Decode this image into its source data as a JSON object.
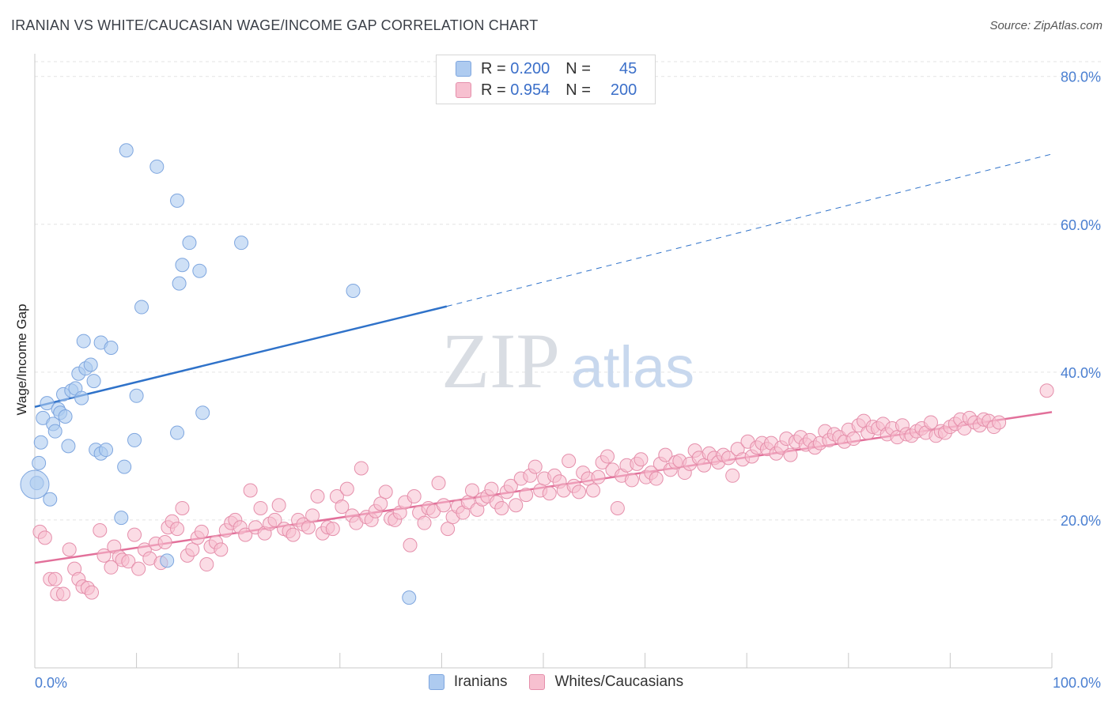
{
  "title": "IRANIAN VS WHITE/CAUCASIAN WAGE/INCOME GAP CORRELATION CHART",
  "source": "Source: ZipAtlas.com",
  "watermark": {
    "zip": "ZIP",
    "atlas": "atlas"
  },
  "legend": {
    "rows": [
      {
        "r_label": "R =",
        "r_value": "0.200",
        "n_label": "N =",
        "n_value": "45",
        "color": "#aecbf0",
        "border": "#7ea6df"
      },
      {
        "r_label": "R =",
        "r_value": "0.954",
        "n_label": "N =",
        "n_value": "200",
        "color": "#f7c0d0",
        "border": "#e58fab"
      }
    ]
  },
  "bottom_legend": [
    {
      "label": "Iranians",
      "color": "#aecbf0",
      "border": "#7ea6df"
    },
    {
      "label": "Whites/Caucasians",
      "color": "#f7c0d0",
      "border": "#e58fab"
    }
  ],
  "chart_data": {
    "type": "scatter",
    "title": "IRANIAN VS WHITE/CAUCASIAN WAGE/INCOME GAP CORRELATION CHART",
    "xlabel": "",
    "ylabel": "Wage/Income Gap",
    "xlim": [
      0,
      100
    ],
    "ylim": [
      0,
      82
    ],
    "x_tick_labels": [
      "0.0%",
      "100.0%"
    ],
    "y_ticks": [
      20,
      40,
      60,
      80
    ],
    "y_tick_labels": [
      "20.0%",
      "40.0%",
      "60.0%",
      "80.0%"
    ],
    "grid": "horizontal dashed",
    "series": [
      {
        "name": "Iranians",
        "color": "#aecbf0",
        "stroke": "#7ea6df",
        "trend_color": "#2f72c9",
        "trend": {
          "x0": 0,
          "y0": 35.3,
          "x1": 40.5,
          "y1": 48.9,
          "x_dash_end": 100,
          "y_dash_end": 69.5
        },
        "points": [
          [
            0.2,
            25.0
          ],
          [
            0.4,
            27.7
          ],
          [
            0.6,
            30.5
          ],
          [
            0.8,
            33.8
          ],
          [
            1.2,
            35.8
          ],
          [
            1.5,
            22.8
          ],
          [
            1.8,
            33.0
          ],
          [
            2.0,
            32.0
          ],
          [
            2.3,
            35.0
          ],
          [
            2.5,
            34.5
          ],
          [
            2.8,
            37.0
          ],
          [
            3.0,
            34.0
          ],
          [
            3.3,
            30.0
          ],
          [
            3.6,
            37.5
          ],
          [
            4.0,
            37.8
          ],
          [
            4.3,
            39.8
          ],
          [
            4.6,
            36.5
          ],
          [
            4.8,
            44.2
          ],
          [
            5.0,
            40.5
          ],
          [
            5.5,
            41.0
          ],
          [
            5.8,
            38.8
          ],
          [
            6.0,
            29.5
          ],
          [
            6.5,
            29.0
          ],
          [
            7.0,
            29.5
          ],
          [
            6.5,
            44.0
          ],
          [
            7.5,
            43.3
          ],
          [
            8.5,
            20.3
          ],
          [
            8.8,
            27.2
          ],
          [
            9.0,
            70.0
          ],
          [
            9.8,
            30.8
          ],
          [
            10.0,
            36.8
          ],
          [
            10.5,
            48.8
          ],
          [
            12.0,
            67.8
          ],
          [
            13.0,
            14.5
          ],
          [
            14.0,
            63.2
          ],
          [
            14.0,
            31.8
          ],
          [
            14.2,
            52.0
          ],
          [
            14.5,
            54.5
          ],
          [
            15.2,
            57.5
          ],
          [
            16.2,
            53.7
          ],
          [
            16.5,
            34.5
          ],
          [
            20.3,
            57.5
          ],
          [
            31.3,
            51.0
          ],
          [
            36.8,
            9.5
          ]
        ],
        "big_point": [
          0.0,
          24.8
        ]
      },
      {
        "name": "Whites/Caucasians",
        "color": "#f7c0d0",
        "stroke": "#e58fab",
        "trend_color": "#e2709a",
        "trend": {
          "x0": 0,
          "y0": 14.2,
          "x1": 100,
          "y1": 34.6
        },
        "points": [
          [
            0.5,
            18.4
          ],
          [
            1.0,
            17.6
          ],
          [
            1.5,
            12.0
          ],
          [
            2.0,
            12.0
          ],
          [
            2.2,
            10.0
          ],
          [
            2.8,
            10.0
          ],
          [
            3.4,
            16.0
          ],
          [
            3.9,
            13.4
          ],
          [
            4.3,
            12.0
          ],
          [
            4.7,
            11.0
          ],
          [
            5.2,
            10.8
          ],
          [
            5.6,
            10.2
          ],
          [
            6.4,
            18.6
          ],
          [
            6.8,
            15.2
          ],
          [
            7.5,
            13.6
          ],
          [
            7.8,
            16.4
          ],
          [
            8.3,
            15.0
          ],
          [
            8.6,
            14.6
          ],
          [
            9.2,
            14.4
          ],
          [
            9.8,
            18.0
          ],
          [
            10.2,
            13.4
          ],
          [
            10.8,
            16.0
          ],
          [
            11.3,
            14.8
          ],
          [
            11.9,
            16.8
          ],
          [
            12.4,
            14.2
          ],
          [
            12.8,
            17.0
          ],
          [
            13.1,
            19.0
          ],
          [
            13.5,
            19.8
          ],
          [
            14.0,
            18.8
          ],
          [
            14.5,
            21.6
          ],
          [
            15.0,
            15.2
          ],
          [
            15.5,
            16.0
          ],
          [
            16.0,
            17.6
          ],
          [
            16.4,
            18.4
          ],
          [
            16.9,
            14.0
          ],
          [
            17.3,
            16.4
          ],
          [
            17.8,
            17.0
          ],
          [
            18.3,
            16.0
          ],
          [
            18.8,
            18.6
          ],
          [
            19.3,
            19.6
          ],
          [
            19.7,
            20.0
          ],
          [
            20.2,
            19.0
          ],
          [
            20.7,
            18.0
          ],
          [
            21.2,
            24.0
          ],
          [
            21.7,
            19.0
          ],
          [
            22.2,
            21.6
          ],
          [
            22.6,
            18.2
          ],
          [
            23.1,
            19.5
          ],
          [
            23.6,
            20.0
          ],
          [
            24.0,
            22.0
          ],
          [
            24.5,
            18.8
          ],
          [
            25.0,
            18.5
          ],
          [
            25.4,
            18.0
          ],
          [
            25.9,
            20.0
          ],
          [
            26.4,
            19.4
          ],
          [
            26.9,
            19.0
          ],
          [
            27.3,
            20.6
          ],
          [
            27.8,
            23.2
          ],
          [
            28.3,
            18.2
          ],
          [
            28.8,
            19.0
          ],
          [
            29.3,
            18.8
          ],
          [
            29.7,
            23.2
          ],
          [
            30.2,
            21.8
          ],
          [
            30.7,
            24.2
          ],
          [
            31.2,
            20.6
          ],
          [
            31.6,
            19.6
          ],
          [
            32.1,
            27.0
          ],
          [
            32.6,
            20.4
          ],
          [
            33.1,
            20.0
          ],
          [
            33.5,
            21.2
          ],
          [
            34.0,
            22.2
          ],
          [
            34.5,
            23.8
          ],
          [
            35.0,
            20.2
          ],
          [
            35.4,
            20.0
          ],
          [
            35.9,
            21.0
          ],
          [
            36.4,
            22.4
          ],
          [
            36.9,
            16.6
          ],
          [
            37.3,
            23.2
          ],
          [
            37.8,
            21.0
          ],
          [
            38.3,
            19.6
          ],
          [
            38.7,
            21.6
          ],
          [
            39.2,
            21.2
          ],
          [
            39.7,
            25.0
          ],
          [
            40.2,
            22.0
          ],
          [
            40.6,
            18.8
          ],
          [
            41.1,
            20.4
          ],
          [
            41.6,
            21.8
          ],
          [
            42.1,
            21.0
          ],
          [
            42.6,
            22.4
          ],
          [
            43.0,
            24.0
          ],
          [
            43.5,
            21.4
          ],
          [
            44.0,
            22.8
          ],
          [
            44.5,
            23.2
          ],
          [
            44.9,
            24.2
          ],
          [
            45.4,
            22.4
          ],
          [
            45.9,
            21.6
          ],
          [
            46.4,
            23.8
          ],
          [
            46.8,
            24.6
          ],
          [
            47.3,
            22.0
          ],
          [
            47.8,
            25.6
          ],
          [
            48.3,
            23.4
          ],
          [
            48.7,
            26.0
          ],
          [
            49.2,
            27.2
          ],
          [
            49.7,
            24.0
          ],
          [
            50.1,
            25.6
          ],
          [
            50.6,
            23.6
          ],
          [
            51.1,
            26.0
          ],
          [
            51.6,
            25.2
          ],
          [
            52.0,
            24.0
          ],
          [
            52.5,
            28.0
          ],
          [
            53.0,
            24.6
          ],
          [
            53.5,
            23.8
          ],
          [
            53.9,
            26.4
          ],
          [
            54.4,
            25.6
          ],
          [
            54.9,
            24.0
          ],
          [
            55.4,
            25.8
          ],
          [
            55.8,
            27.8
          ],
          [
            56.3,
            28.6
          ],
          [
            56.8,
            26.8
          ],
          [
            57.3,
            21.6
          ],
          [
            57.7,
            26.0
          ],
          [
            58.2,
            27.4
          ],
          [
            58.7,
            25.4
          ],
          [
            59.2,
            27.6
          ],
          [
            59.6,
            28.2
          ],
          [
            60.1,
            25.8
          ],
          [
            60.6,
            26.4
          ],
          [
            61.1,
            25.6
          ],
          [
            61.5,
            27.6
          ],
          [
            62.0,
            28.8
          ],
          [
            62.5,
            26.8
          ],
          [
            63.0,
            27.8
          ],
          [
            63.4,
            28.0
          ],
          [
            63.9,
            26.4
          ],
          [
            64.4,
            27.6
          ],
          [
            64.9,
            29.4
          ],
          [
            65.3,
            28.4
          ],
          [
            65.8,
            27.4
          ],
          [
            66.3,
            29.0
          ],
          [
            66.8,
            28.4
          ],
          [
            67.2,
            27.8
          ],
          [
            67.7,
            28.8
          ],
          [
            68.2,
            28.4
          ],
          [
            68.6,
            26.0
          ],
          [
            69.1,
            29.6
          ],
          [
            69.6,
            28.2
          ],
          [
            70.1,
            30.6
          ],
          [
            70.5,
            28.6
          ],
          [
            71.0,
            29.8
          ],
          [
            71.5,
            30.4
          ],
          [
            72.0,
            29.6
          ],
          [
            72.4,
            30.4
          ],
          [
            72.9,
            29.0
          ],
          [
            73.4,
            29.8
          ],
          [
            73.9,
            31.0
          ],
          [
            74.3,
            28.8
          ],
          [
            74.8,
            30.6
          ],
          [
            75.3,
            31.2
          ],
          [
            75.8,
            30.2
          ],
          [
            76.2,
            30.8
          ],
          [
            76.7,
            29.8
          ],
          [
            77.2,
            30.4
          ],
          [
            77.7,
            32.0
          ],
          [
            78.1,
            30.8
          ],
          [
            78.6,
            31.6
          ],
          [
            79.1,
            31.2
          ],
          [
            79.6,
            30.6
          ],
          [
            80.0,
            32.2
          ],
          [
            80.5,
            31.0
          ],
          [
            81.0,
            32.8
          ],
          [
            81.5,
            33.4
          ],
          [
            81.9,
            31.8
          ],
          [
            82.4,
            32.6
          ],
          [
            82.9,
            32.4
          ],
          [
            83.4,
            33.0
          ],
          [
            83.8,
            31.6
          ],
          [
            84.3,
            32.4
          ],
          [
            84.8,
            31.2
          ],
          [
            85.3,
            32.8
          ],
          [
            85.7,
            31.6
          ],
          [
            86.2,
            31.4
          ],
          [
            86.7,
            32.0
          ],
          [
            87.2,
            32.4
          ],
          [
            87.6,
            31.8
          ],
          [
            88.1,
            33.2
          ],
          [
            88.6,
            31.4
          ],
          [
            89.1,
            32.0
          ],
          [
            89.5,
            31.8
          ],
          [
            90.0,
            32.6
          ],
          [
            90.5,
            33.0
          ],
          [
            91.0,
            33.6
          ],
          [
            91.4,
            32.4
          ],
          [
            91.9,
            33.8
          ],
          [
            92.4,
            33.2
          ],
          [
            92.9,
            32.8
          ],
          [
            93.3,
            33.6
          ],
          [
            93.8,
            33.4
          ],
          [
            94.3,
            32.6
          ],
          [
            94.8,
            33.2
          ],
          [
            99.5,
            37.5
          ]
        ]
      }
    ]
  }
}
